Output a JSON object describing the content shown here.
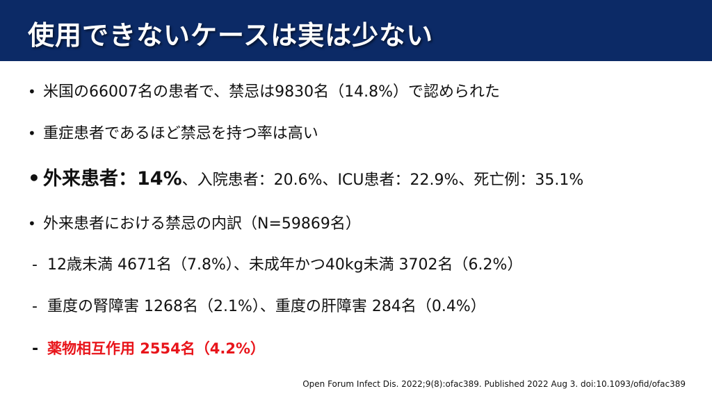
{
  "header": {
    "title": "使用できないケースは実は少ない"
  },
  "bullets": [
    {
      "marker": "•",
      "text": "米国の66007名の患者で、禁忌は9830名（14.8%）で認められた"
    },
    {
      "marker": "•",
      "text": "重症患者であるほど禁忌を持つ率は高い"
    },
    {
      "marker": "•",
      "bold": "外来患者：14%",
      "rest": "、入院患者：20.6%、ICU患者：22.9%、死亡例：35.1%"
    },
    {
      "marker": "•",
      "text": "外来患者における禁忌の内訳（N=59869名）"
    }
  ],
  "subitems": [
    {
      "marker": "-",
      "text": "12歳未満 4671名（7.8%）、未成年かつ40kg未満 3702名（6.2%）"
    },
    {
      "marker": "-",
      "text": "重度の腎障害 1268名（2.1%）、重度の肝障害 284名（0.4%）"
    },
    {
      "marker": "-",
      "text": "薬物相互作用 2554名（4.2%）"
    }
  ],
  "citation": "Open Forum Infect Dis. 2022;9(8):ofac389. Published 2022 Aug 3. doi:10.1093/ofid/ofac389",
  "colors": {
    "header_bg": "#0c2a66",
    "highlight_red": "#e8141a"
  }
}
